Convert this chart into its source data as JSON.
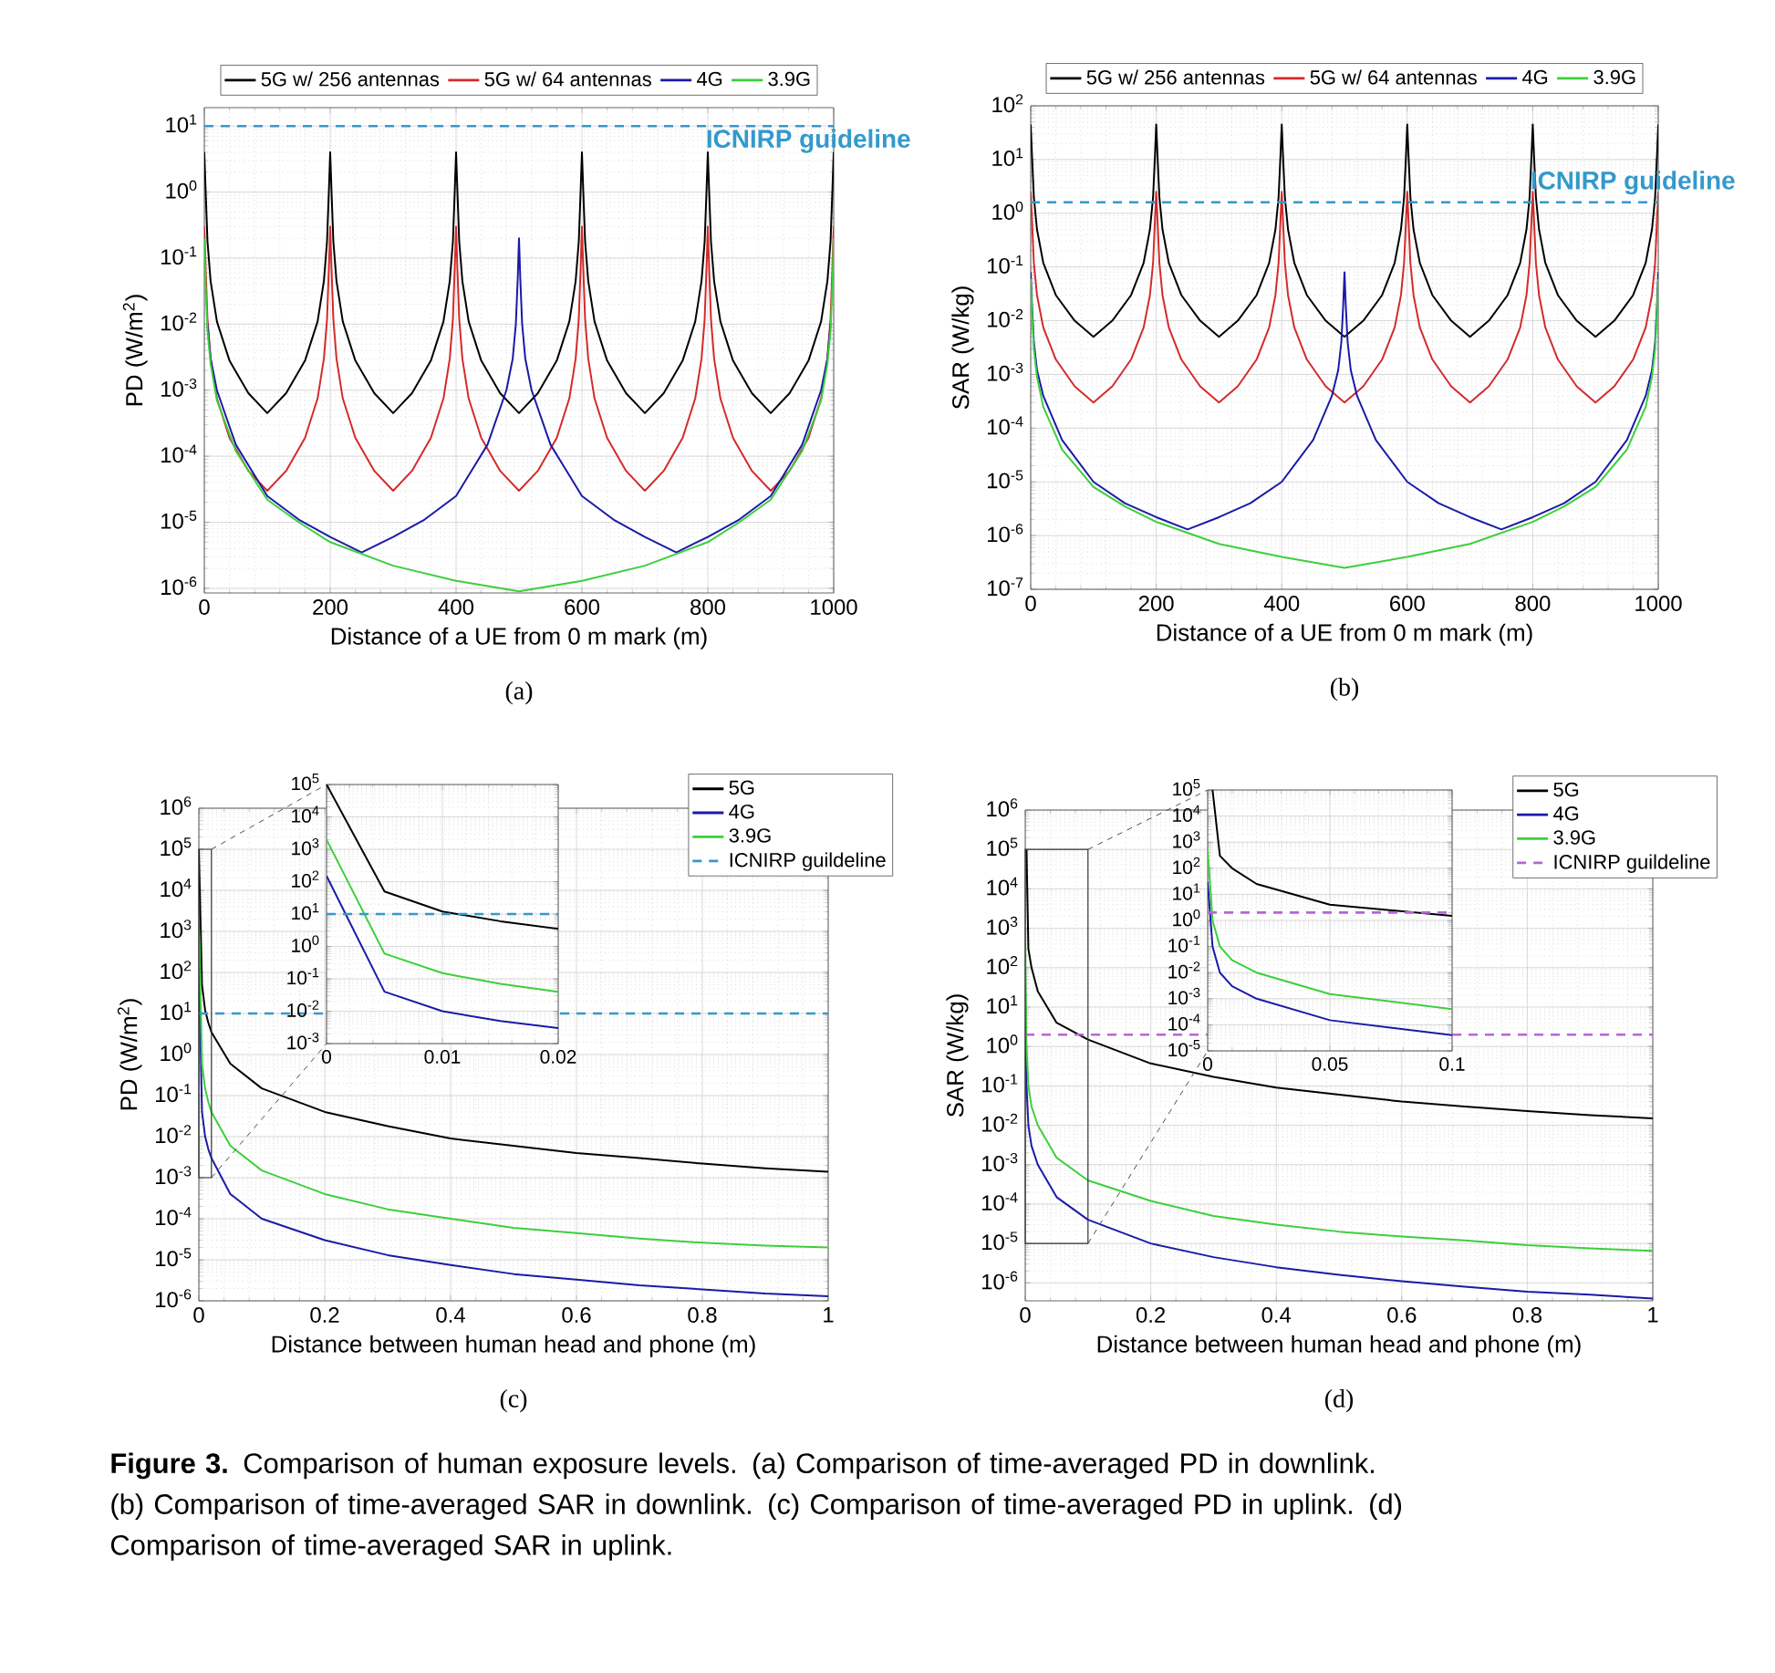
{
  "chart_data": [
    {
      "type": "line",
      "xlabel": "Distance of a UE from 0 m mark (m)",
      "ylabel": "PD (W/m$^{2}$)",
      "log": "y",
      "grid": true,
      "legend": "top",
      "xlim": [
        0,
        1000
      ],
      "xticks": [
        0,
        200,
        400,
        600,
        800,
        1000
      ],
      "ylim": [
        8.5e-07,
        19
      ],
      "yticks": [
        {
          "value": 1e-06,
          "label": "10$^{-6}$"
        },
        {
          "value": 1e-05,
          "label": "10$^{-5}$"
        },
        {
          "value": 0.0001,
          "label": "10$^{-4}$"
        },
        {
          "value": 0.001,
          "label": "10$^{-3}$"
        },
        {
          "value": 0.01,
          "label": "10$^{-2}$"
        },
        {
          "value": 0.1,
          "label": "10$^{-1}$"
        },
        {
          "value": 1,
          "label": "10$^{0}$"
        },
        {
          "value": 10,
          "label": "10$^{1}$"
        }
      ],
      "series": [
        {
          "name": "5G w/ 256 antennas",
          "color": "#000000",
          "x": [
            0,
            2,
            5,
            10,
            20,
            40,
            70,
            100,
            130,
            160,
            180,
            190,
            195,
            198,
            200,
            202,
            205,
            210,
            220,
            240,
            270,
            300,
            330,
            360,
            380,
            390,
            395,
            398,
            400,
            402,
            405,
            410,
            420,
            440,
            470,
            500,
            530,
            560,
            580,
            590,
            595,
            598,
            600,
            602,
            605,
            610,
            620,
            640,
            670,
            700,
            730,
            760,
            780,
            790,
            795,
            798,
            800,
            802,
            805,
            810,
            820,
            840,
            870,
            900,
            930,
            960,
            980,
            990,
            995,
            998,
            1000
          ],
          "values": [
            4,
            1.1,
            0.18,
            0.045,
            0.011,
            0.0028,
            0.0009,
            0.00045,
            0.0009,
            0.0028,
            0.011,
            0.045,
            0.18,
            1.1,
            4,
            1.1,
            0.18,
            0.045,
            0.011,
            0.0028,
            0.0009,
            0.00045,
            0.0009,
            0.0028,
            0.011,
            0.045,
            0.18,
            1.1,
            4,
            1.1,
            0.18,
            0.045,
            0.011,
            0.0028,
            0.0009,
            0.00045,
            0.0009,
            0.0028,
            0.011,
            0.045,
            0.18,
            1.1,
            4,
            1.1,
            0.18,
            0.045,
            0.011,
            0.0028,
            0.0009,
            0.00045,
            0.0009,
            0.0028,
            0.011,
            0.045,
            0.18,
            1.1,
            4,
            1.1,
            0.18,
            0.045,
            0.011,
            0.0028,
            0.0009,
            0.00045,
            0.0009,
            0.0028,
            0.011,
            0.045,
            0.18,
            1.1,
            4
          ]
        },
        {
          "name": "5G w/ 64 antennas",
          "color": "#d42a2a",
          "x": [
            0,
            2,
            5,
            10,
            20,
            40,
            70,
            100,
            130,
            160,
            180,
            190,
            195,
            198,
            200,
            202,
            205,
            210,
            220,
            240,
            270,
            300,
            330,
            360,
            380,
            390,
            395,
            398,
            400,
            402,
            405,
            410,
            420,
            440,
            470,
            500,
            530,
            560,
            580,
            590,
            595,
            598,
            600,
            602,
            605,
            610,
            620,
            640,
            670,
            700,
            730,
            760,
            780,
            790,
            795,
            798,
            800,
            802,
            805,
            810,
            820,
            840,
            870,
            900,
            930,
            960,
            980,
            990,
            995,
            998,
            1000
          ],
          "values": [
            0.3,
            0.075,
            0.012,
            0.003,
            0.00075,
            0.00019,
            6e-05,
            3e-05,
            6e-05,
            0.00019,
            0.00075,
            0.003,
            0.012,
            0.075,
            0.3,
            0.075,
            0.012,
            0.003,
            0.00075,
            0.00019,
            6e-05,
            3e-05,
            6e-05,
            0.00019,
            0.00075,
            0.003,
            0.012,
            0.075,
            0.3,
            0.075,
            0.012,
            0.003,
            0.00075,
            0.00019,
            6e-05,
            3e-05,
            6e-05,
            0.00019,
            0.00075,
            0.003,
            0.012,
            0.075,
            0.3,
            0.075,
            0.012,
            0.003,
            0.00075,
            0.00019,
            6e-05,
            3e-05,
            6e-05,
            0.00019,
            0.00075,
            0.003,
            0.012,
            0.075,
            0.3,
            0.075,
            0.012,
            0.003,
            0.00075,
            0.00019,
            6e-05,
            3e-05,
            6e-05,
            0.00019,
            0.00075,
            0.003,
            0.012,
            0.075,
            0.3
          ]
        },
        {
          "name": "4G",
          "color": "#1a1aa8",
          "x": [
            5,
            10,
            20,
            50,
            100,
            150,
            200,
            250,
            300,
            350,
            400,
            450,
            480,
            490,
            495,
            498,
            500,
            502,
            505,
            510,
            520,
            550,
            600,
            650,
            700,
            750,
            800,
            850,
            900,
            950,
            980,
            990,
            995
          ],
          "values": [
            0.01,
            0.003,
            0.001,
            0.00015,
            2.5e-05,
            1.1e-05,
            6e-06,
            3.5e-06,
            6e-06,
            1.1e-05,
            2.5e-05,
            0.00015,
            0.001,
            0.003,
            0.01,
            0.05,
            0.2,
            0.05,
            0.01,
            0.003,
            0.001,
            0.00015,
            2.5e-05,
            1.1e-05,
            6e-06,
            3.5e-06,
            6e-06,
            1.1e-05,
            2.5e-05,
            0.00015,
            0.001,
            0.003,
            0.01
          ]
        },
        {
          "name": "3.9G",
          "color": "#3ccf3c",
          "x": [
            0,
            2,
            5,
            10,
            20,
            50,
            100,
            150,
            200,
            300,
            400,
            500,
            600,
            700,
            800,
            850,
            900,
            950,
            980,
            990,
            995,
            998,
            1000
          ],
          "values": [
            0.2,
            0.04,
            0.008,
            0.0025,
            0.0007,
            0.00012,
            2.2e-05,
            1e-05,
            5e-06,
            2.2e-06,
            1.3e-06,
            9e-07,
            1.3e-06,
            2.2e-06,
            5e-06,
            1e-05,
            2.2e-05,
            0.00012,
            0.0007,
            0.0025,
            0.008,
            0.04,
            0.2
          ]
        }
      ],
      "ref_lines": [
        {
          "axis": "y",
          "value": 10,
          "label": "ICNIRP guideline",
          "color": "#3399cc",
          "line_style": "dashed"
        }
      ],
      "annotations": [
        "(a)"
      ]
    },
    {
      "type": "line",
      "xlabel": "Distance of a UE from 0 m mark (m)",
      "ylabel": "SAR (W/kg)",
      "log": "y",
      "grid": true,
      "legend": "top",
      "xlim": [
        0,
        1000
      ],
      "xticks": [
        0,
        200,
        400,
        600,
        800,
        1000
      ],
      "ylim": [
        1e-07,
        100
      ],
      "yticks": [
        {
          "value": 1e-07,
          "label": "10$^{-7}$"
        },
        {
          "value": 1e-06,
          "label": "10$^{-6}$"
        },
        {
          "value": 1e-05,
          "label": "10$^{-5}$"
        },
        {
          "value": 0.0001,
          "label": "10$^{-4}$"
        },
        {
          "value": 0.001,
          "label": "10$^{-3}$"
        },
        {
          "value": 0.01,
          "label": "10$^{-2}$"
        },
        {
          "value": 0.1,
          "label": "10$^{-1}$"
        },
        {
          "value": 1,
          "label": "10$^{0}$"
        },
        {
          "value": 10,
          "label": "10$^{1}$"
        },
        {
          "value": 100,
          "label": "10$^{2}$"
        }
      ],
      "series": [
        {
          "name": "5G w/ 256 antennas",
          "color": "#000000",
          "x": [
            0,
            2,
            5,
            10,
            20,
            40,
            70,
            100,
            130,
            160,
            180,
            190,
            195,
            198,
            200,
            202,
            205,
            210,
            220,
            240,
            270,
            300,
            330,
            360,
            380,
            390,
            395,
            398,
            400,
            402,
            405,
            410,
            420,
            440,
            470,
            500,
            530,
            560,
            580,
            590,
            595,
            598,
            600,
            602,
            605,
            610,
            620,
            640,
            670,
            700,
            730,
            760,
            780,
            790,
            795,
            798,
            800,
            802,
            805,
            810,
            820,
            840,
            870,
            900,
            930,
            960,
            980,
            990,
            995,
            998,
            1000
          ],
          "values": [
            45,
            12,
            2,
            0.5,
            0.12,
            0.03,
            0.01,
            0.005,
            0.01,
            0.03,
            0.12,
            0.5,
            2,
            12,
            45,
            12,
            2,
            0.5,
            0.12,
            0.03,
            0.01,
            0.005,
            0.01,
            0.03,
            0.12,
            0.5,
            2,
            12,
            45,
            12,
            2,
            0.5,
            0.12,
            0.03,
            0.01,
            0.005,
            0.01,
            0.03,
            0.12,
            0.5,
            2,
            12,
            45,
            12,
            2,
            0.5,
            0.12,
            0.03,
            0.01,
            0.005,
            0.01,
            0.03,
            0.12,
            0.5,
            2,
            12,
            45,
            12,
            2,
            0.5,
            0.12,
            0.03,
            0.01,
            0.005,
            0.01,
            0.03,
            0.12,
            0.5,
            2,
            12,
            45
          ]
        },
        {
          "name": "5G w/ 64 antennas",
          "color": "#d42a2a",
          "x": [
            0,
            2,
            5,
            10,
            20,
            40,
            70,
            100,
            130,
            160,
            180,
            190,
            195,
            198,
            200,
            202,
            205,
            210,
            220,
            240,
            270,
            300,
            330,
            360,
            380,
            390,
            395,
            398,
            400,
            402,
            405,
            410,
            420,
            440,
            470,
            500,
            530,
            560,
            580,
            590,
            595,
            598,
            600,
            602,
            605,
            610,
            620,
            640,
            670,
            700,
            730,
            760,
            780,
            790,
            795,
            798,
            800,
            802,
            805,
            810,
            820,
            840,
            870,
            900,
            930,
            960,
            980,
            990,
            995,
            998,
            1000
          ],
          "values": [
            2.5,
            0.75,
            0.12,
            0.03,
            0.0075,
            0.0019,
            0.0006,
            0.0003,
            0.0006,
            0.0019,
            0.0075,
            0.03,
            0.12,
            0.75,
            2.5,
            0.75,
            0.12,
            0.03,
            0.0075,
            0.0019,
            0.0006,
            0.0003,
            0.0006,
            0.0019,
            0.0075,
            0.03,
            0.12,
            0.75,
            2.5,
            0.75,
            0.12,
            0.03,
            0.0075,
            0.0019,
            0.0006,
            0.0003,
            0.0006,
            0.0019,
            0.0075,
            0.03,
            0.12,
            0.75,
            2.5,
            0.75,
            0.12,
            0.03,
            0.0075,
            0.0019,
            0.0006,
            0.0003,
            0.0006,
            0.0019,
            0.0075,
            0.03,
            0.12,
            0.75,
            2.5,
            0.75,
            0.12,
            0.03,
            0.0075,
            0.0019,
            0.0006,
            0.0003,
            0.0006,
            0.0019,
            0.0075,
            0.03,
            0.12,
            0.75,
            2.5
          ]
        },
        {
          "name": "4G",
          "color": "#1a1aa8",
          "x": [
            0,
            2,
            5,
            10,
            20,
            50,
            100,
            150,
            200,
            250,
            300,
            350,
            400,
            450,
            480,
            490,
            495,
            498,
            500,
            502,
            505,
            510,
            520,
            550,
            600,
            650,
            700,
            750,
            800,
            850,
            900,
            950,
            980,
            990,
            995,
            998,
            1000
          ],
          "values": [
            0.08,
            0.02,
            0.004,
            0.0012,
            0.0004,
            6e-05,
            1e-05,
            4e-06,
            2.2e-06,
            1.3e-06,
            2.2e-06,
            4e-06,
            1e-05,
            6e-05,
            0.0004,
            0.0012,
            0.004,
            0.02,
            0.08,
            0.02,
            0.004,
            0.0012,
            0.0004,
            6e-05,
            1e-05,
            4e-06,
            2.2e-06,
            1.3e-06,
            2.2e-06,
            4e-06,
            1e-05,
            6e-05,
            0.0004,
            0.0012,
            0.004,
            0.02,
            0.08
          ]
        },
        {
          "name": "3.9G",
          "color": "#3ccf3c",
          "x": [
            0,
            2,
            5,
            10,
            20,
            50,
            100,
            150,
            200,
            300,
            400,
            500,
            600,
            700,
            800,
            850,
            900,
            950,
            980,
            990,
            995,
            998,
            1000
          ],
          "values": [
            0.06,
            0.015,
            0.003,
            0.0009,
            0.00025,
            4e-05,
            8e-06,
            3.5e-06,
            1.8e-06,
            7e-07,
            4e-07,
            2.5e-07,
            4e-07,
            7e-07,
            1.8e-06,
            3.5e-06,
            8e-06,
            4e-05,
            0.00025,
            0.0009,
            0.003,
            0.015,
            0.06
          ]
        }
      ],
      "ref_lines": [
        {
          "axis": "y",
          "value": 1.6,
          "label": "ICNIRP guideline",
          "color": "#3399cc",
          "line_style": "dashed"
        }
      ],
      "annotations": [
        "(b)"
      ]
    },
    {
      "type": "line",
      "xlabel": "Distance between human head and phone (m)",
      "ylabel": "PD (W/m$^{2}$)",
      "log": "y",
      "grid": true,
      "legend": "top right",
      "xlim": [
        0,
        1
      ],
      "xticks": [
        0,
        0.2,
        0.4,
        0.6,
        0.8,
        1
      ],
      "ylim": [
        1e-06,
        1000000
      ],
      "yticks": [
        {
          "value": 1e-06,
          "label": "10$^{-6}$"
        },
        {
          "value": 1e-05,
          "label": "10$^{-5}$"
        },
        {
          "value": 0.0001,
          "label": "10$^{-4}$"
        },
        {
          "value": 0.001,
          "label": "10$^{-3}$"
        },
        {
          "value": 0.01,
          "label": "10$^{-2}$"
        },
        {
          "value": 0.1,
          "label": "10$^{-1}$"
        },
        {
          "value": 1,
          "label": "10$^{0}$"
        },
        {
          "value": 10,
          "label": "10$^{1}$"
        },
        {
          "value": 100,
          "label": "10$^{2}$"
        },
        {
          "value": 1000,
          "label": "10$^{3}$"
        },
        {
          "value": 10000,
          "label": "10$^{4}$"
        },
        {
          "value": 100000,
          "label": "10$^{5}$"
        },
        {
          "value": 1000000,
          "label": "10$^{6}$"
        }
      ],
      "series": [
        {
          "name": "5G",
          "color": "#000000",
          "x": [
            0,
            0.005,
            0.01,
            0.015,
            0.02,
            0.05,
            0.1,
            0.2,
            0.3,
            0.4,
            0.5,
            0.6,
            0.7,
            0.8,
            0.9,
            1
          ],
          "values": [
            100000,
            50,
            12,
            6,
            3.5,
            0.6,
            0.15,
            0.04,
            0.018,
            0.009,
            0.006,
            0.004,
            0.003,
            0.0022,
            0.0017,
            0.0014
          ]
        },
        {
          "name": "4G",
          "color": "#1a1aa8",
          "x": [
            0,
            0.005,
            0.01,
            0.015,
            0.02,
            0.05,
            0.1,
            0.2,
            0.3,
            0.4,
            0.5,
            0.6,
            0.7,
            0.8,
            0.9,
            1
          ],
          "values": [
            150,
            0.04,
            0.01,
            0.005,
            0.003,
            0.0004,
            0.0001,
            3e-05,
            1.3e-05,
            7.5e-06,
            4.5e-06,
            3.3e-06,
            2.4e-06,
            1.9e-06,
            1.5e-06,
            1.3e-06
          ]
        },
        {
          "name": "3.9G",
          "color": "#3ccf3c",
          "x": [
            0,
            0.005,
            0.01,
            0.015,
            0.02,
            0.05,
            0.1,
            0.2,
            0.3,
            0.4,
            0.5,
            0.6,
            0.7,
            0.8,
            0.9,
            1
          ],
          "values": [
            2000,
            0.6,
            0.15,
            0.07,
            0.04,
            0.006,
            0.0015,
            0.0004,
            0.00017,
            0.0001,
            6e-05,
            4.5e-05,
            3.3e-05,
            2.6e-05,
            2.2e-05,
            2e-05
          ]
        }
      ],
      "ref_lines": [
        {
          "axis": "y",
          "value": 10,
          "label": "ICNIRP guildeline",
          "color": "#3399cc",
          "line_style": "dashed"
        }
      ],
      "annotations": [
        "(c)"
      ]
    },
    {
      "type": "line",
      "log": "y",
      "grid": true,
      "xlim": [
        0,
        0.02
      ],
      "xticks": [
        0,
        0.01,
        0.02
      ],
      "ylim": [
        0.001,
        100000
      ],
      "yticks": [
        {
          "value": 0.001,
          "label": "10$^{-3}$"
        },
        {
          "value": 0.01,
          "label": "10$^{-2}$"
        },
        {
          "value": 0.1,
          "label": "10$^{-1}$"
        },
        {
          "value": 1,
          "label": "10$^{0}$"
        },
        {
          "value": 10,
          "label": "10$^{1}$"
        },
        {
          "value": 100,
          "label": "10$^{2}$"
        },
        {
          "value": 1000,
          "label": "10$^{3}$"
        },
        {
          "value": 10000,
          "label": "10$^{4}$"
        },
        {
          "value": 100000,
          "label": "10$^{5}$"
        }
      ],
      "series": [
        {
          "color": "#000000",
          "x": [
            0,
            0.005,
            0.01,
            0.015,
            0.02
          ],
          "values": [
            100000,
            50,
            12,
            6,
            3.5
          ]
        },
        {
          "color": "#1a1aa8",
          "x": [
            0,
            0.005,
            0.01,
            0.015,
            0.02
          ],
          "values": [
            150,
            0.04,
            0.01,
            0.005,
            0.003
          ]
        },
        {
          "color": "#3ccf3c",
          "x": [
            0,
            0.005,
            0.01,
            0.015,
            0.02
          ],
          "values": [
            2000,
            0.6,
            0.15,
            0.07,
            0.04
          ]
        }
      ],
      "ref_lines": [
        {
          "axis": "y",
          "value": 10,
          "color": "#3399cc",
          "line_style": "dashed"
        }
      ]
    },
    {
      "type": "line",
      "xlabel": "Distance between human head and phone (m)",
      "ylabel": "SAR (W/kg)",
      "log": "y",
      "grid": true,
      "legend": "top right",
      "xlim": [
        0,
        1
      ],
      "xticks": [
        0,
        0.2,
        0.4,
        0.6,
        0.8,
        1
      ],
      "ylim": [
        3.5e-07,
        1000000
      ],
      "yticks": [
        {
          "value": 1e-06,
          "label": "10$^{-6}$"
        },
        {
          "value": 1e-05,
          "label": "10$^{-5}$"
        },
        {
          "value": 0.0001,
          "label": "10$^{-4}$"
        },
        {
          "value": 0.001,
          "label": "10$^{-3}$"
        },
        {
          "value": 0.01,
          "label": "10$^{-2}$"
        },
        {
          "value": 0.1,
          "label": "10$^{-1}$"
        },
        {
          "value": 1,
          "label": "10$^{0}$"
        },
        {
          "value": 10,
          "label": "10$^{1}$"
        },
        {
          "value": 100,
          "label": "10$^{2}$"
        },
        {
          "value": 1000,
          "label": "10$^{3}$"
        },
        {
          "value": 10000,
          "label": "10$^{4}$"
        },
        {
          "value": 100000,
          "label": "10$^{5}$"
        },
        {
          "value": 1000000,
          "label": "10$^{6}$"
        }
      ],
      "series": [
        {
          "name": "5G",
          "color": "#000000",
          "x": [
            0.002,
            0.005,
            0.01,
            0.02,
            0.05,
            0.1,
            0.2,
            0.3,
            0.4,
            0.5,
            0.6,
            0.7,
            0.8,
            0.9,
            1
          ],
          "values": [
            100000,
            300,
            100,
            25,
            4,
            1.5,
            0.37,
            0.17,
            0.09,
            0.06,
            0.04,
            0.03,
            0.023,
            0.018,
            0.015
          ]
        },
        {
          "name": "4G",
          "color": "#1a1aa8",
          "x": [
            0,
            0.002,
            0.005,
            0.01,
            0.02,
            0.05,
            0.1,
            0.2,
            0.3,
            0.4,
            0.5,
            0.6,
            0.7,
            0.8,
            0.9,
            1
          ],
          "values": [
            30,
            0.1,
            0.01,
            0.003,
            0.001,
            0.00015,
            4e-05,
            1e-05,
            4.5e-06,
            2.5e-06,
            1.6e-06,
            1.1e-06,
            8e-07,
            6e-07,
            5e-07,
            4e-07
          ]
        },
        {
          "name": "3.9G",
          "color": "#3ccf3c",
          "x": [
            0,
            0.002,
            0.005,
            0.01,
            0.02,
            0.05,
            0.1,
            0.2,
            0.3,
            0.4,
            0.5,
            0.6,
            0.7,
            0.8,
            0.9,
            1
          ],
          "values": [
            500,
            1,
            0.1,
            0.03,
            0.01,
            0.0015,
            0.0004,
            0.00012,
            5e-05,
            3e-05,
            2e-05,
            1.5e-05,
            1.2e-05,
            9e-06,
            7.5e-06,
            6.5e-06
          ]
        }
      ],
      "ref_lines": [
        {
          "axis": "y",
          "value": 2,
          "label": "ICNIRP guildeline",
          "color": "#b566d6",
          "line_style": "dashed"
        }
      ],
      "annotations": [
        "(d)",
        "**Figure 3.** Comparison of human exposure levels. (a) Comparison of time-averaged PD in downlink. (b) Comparison of time-averaged SAR in downlink. (c) Comparison of time-averaged PD in uplink. (d) Comparison of time-averaged SAR in uplink."
      ]
    },
    {
      "type": "line",
      "log": "y",
      "grid": true,
      "xlim": [
        0,
        0.1
      ],
      "xticks": [
        0,
        0.05,
        0.1
      ],
      "ylim": [
        1e-05,
        100000
      ],
      "yticks": [
        {
          "value": 1e-05,
          "label": "10$^{-5}$"
        },
        {
          "value": 0.0001,
          "label": "10$^{-4}$"
        },
        {
          "value": 0.001,
          "label": "10$^{-3}$"
        },
        {
          "value": 0.01,
          "label": "10$^{-2}$"
        },
        {
          "value": 0.1,
          "label": "10$^{-1}$"
        },
        {
          "value": 1,
          "label": "10$^{0}$"
        },
        {
          "value": 10,
          "label": "10$^{1}$"
        },
        {
          "value": 100,
          "label": "10$^{2}$"
        },
        {
          "value": 1000,
          "label": "10$^{3}$"
        },
        {
          "value": 10000,
          "label": "10$^{4}$"
        },
        {
          "value": 100000,
          "label": "10$^{5}$"
        }
      ],
      "series": [
        {
          "color": "#000000",
          "x": [
            0.002,
            0.005,
            0.01,
            0.02,
            0.05,
            0.1
          ],
          "values": [
            100000,
            300,
            100,
            25,
            4,
            1.5
          ]
        },
        {
          "color": "#1a1aa8",
          "x": [
            0,
            0.002,
            0.005,
            0.01,
            0.02,
            0.05,
            0.1
          ],
          "values": [
            30,
            0.1,
            0.01,
            0.003,
            0.001,
            0.00015,
            4e-05
          ]
        },
        {
          "color": "#3ccf3c",
          "x": [
            0,
            0.002,
            0.005,
            0.01,
            0.02,
            0.05,
            0.1
          ],
          "values": [
            500,
            1,
            0.1,
            0.03,
            0.01,
            0.0015,
            0.0004
          ]
        }
      ],
      "ref_lines": [
        {
          "axis": "y",
          "value": 2,
          "color": "#b566d6",
          "line_style": "dashed"
        }
      ]
    }
  ]
}
